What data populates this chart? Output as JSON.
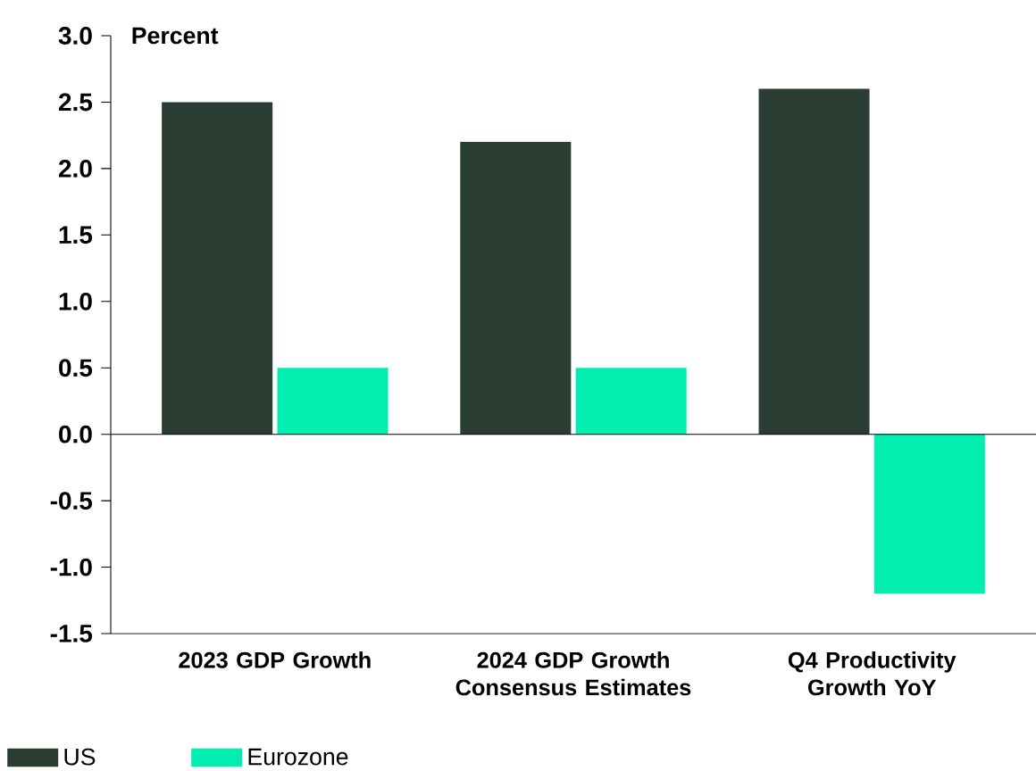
{
  "chart_data": {
    "type": "bar",
    "ylabel": "Percent",
    "categories": [
      "2023 GDP Growth",
      "2024 GDP Growth Consensus Estimates",
      "Q4 Productivity Growth YoY"
    ],
    "series": [
      {
        "name": "US",
        "color": "#293d33",
        "values": [
          2.5,
          2.2,
          2.6
        ]
      },
      {
        "name": "Eurozone",
        "color": "#00efb0",
        "values": [
          0.5,
          0.5,
          -1.2
        ]
      }
    ],
    "ylim": [
      -1.5,
      3.0
    ],
    "yticks": [
      -1.5,
      {
        "value": -1,
        "label": "-1.0"
      },
      -0.5,
      {
        "value": 0,
        "label": "0.0"
      },
      0.5,
      {
        "value": 1,
        "label": "1.0"
      },
      1.5,
      {
        "value": 2,
        "label": "2.0"
      },
      2.5,
      {
        "value": 3,
        "label": "3.0"
      }
    ],
    "ref_lines": [
      {
        "axis": "y",
        "value": 0
      }
    ],
    "legend": "bottom left"
  }
}
